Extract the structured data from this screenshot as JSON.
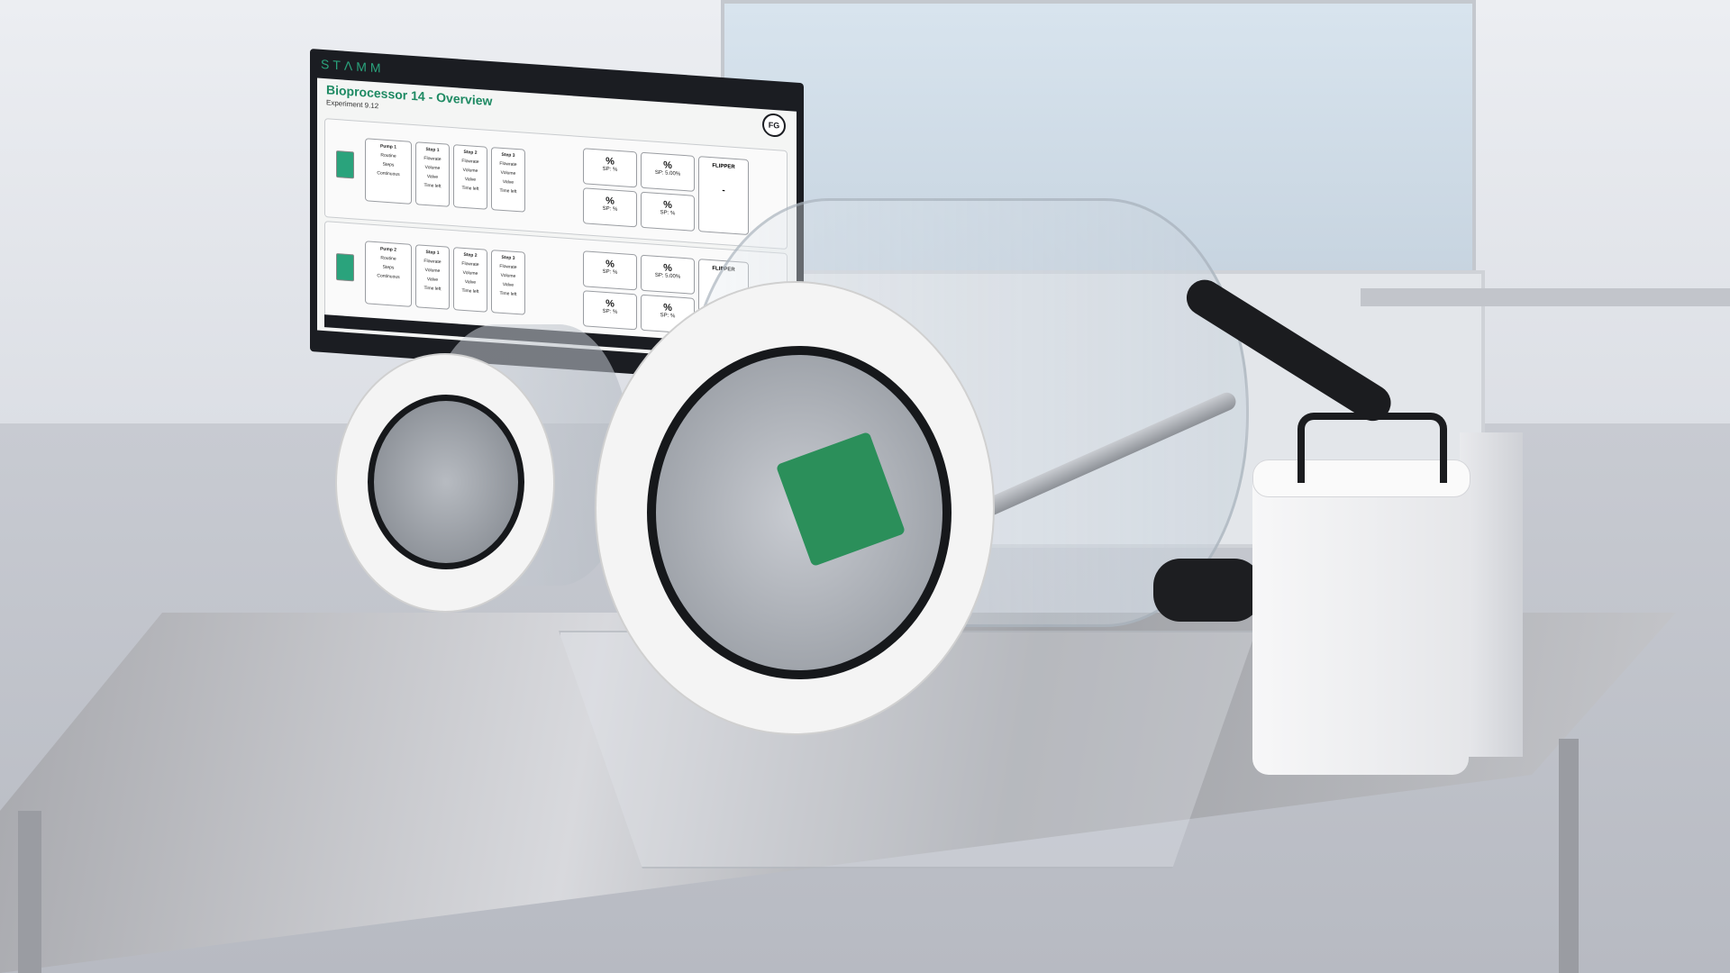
{
  "monitor": {
    "brand": "STΛMM",
    "avatar": "FG",
    "title": "Bioprocessor 14 - Overview",
    "subtitle": "Experiment 9.12",
    "panels": [
      {
        "pump_card": {
          "title": "Pump 1",
          "rows": [
            "Routine",
            "Steps",
            "Continuous"
          ]
        },
        "steps": [
          {
            "title": "Step 1",
            "rows": [
              "Flowrate",
              "Volume",
              "Valve",
              "Time left"
            ]
          },
          {
            "title": "Step 2",
            "rows": [
              "Flowrate",
              "Volume",
              "Valve",
              "Time left"
            ]
          },
          {
            "title": "Step 3",
            "rows": [
              "Flowrate",
              "Volume",
              "Valve",
              "Time left"
            ]
          }
        ],
        "sensors": [
          {
            "value": "%",
            "sp": "SP: %"
          },
          {
            "value": "%",
            "sp": "SP: 5.00%"
          },
          {
            "value": "%",
            "sp": "SP: %"
          },
          {
            "value": "%",
            "sp": "SP: %"
          }
        ],
        "flipper": {
          "title": "FLIPPER",
          "value": "-"
        }
      },
      {
        "pump_card": {
          "title": "Pump 2",
          "rows": [
            "Routine",
            "Steps",
            "Continuous"
          ]
        },
        "steps": [
          {
            "title": "Step 1",
            "rows": [
              "Flowrate",
              "Volume",
              "Valve",
              "Time left"
            ]
          },
          {
            "title": "Step 2",
            "rows": [
              "Flowrate",
              "Volume",
              "Valve",
              "Time left"
            ]
          },
          {
            "title": "Step 3",
            "rows": [
              "Flowrate",
              "Volume",
              "Valve",
              "Time left"
            ]
          }
        ],
        "sensors": [
          {
            "value": "%",
            "sp": "SP: %"
          },
          {
            "value": "%",
            "sp": "SP: 5.00%"
          },
          {
            "value": "%",
            "sp": "SP: %"
          },
          {
            "value": "%",
            "sp": "SP: %"
          }
        ],
        "flipper": {
          "title": "FLIPPER",
          "value": ""
        }
      }
    ]
  }
}
